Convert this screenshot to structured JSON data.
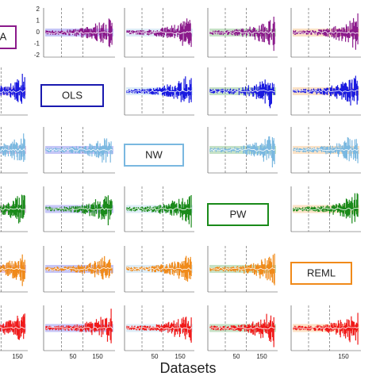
{
  "figure": {
    "diagonal_labels": [
      "A",
      "OLS",
      "NW",
      "PW",
      "REML"
    ],
    "yticks": [
      "2",
      "1",
      "0",
      "-1",
      "-2"
    ],
    "xticks": [
      [
        "150"
      ],
      [
        "50",
        "150"
      ],
      [
        "50",
        "150"
      ],
      [
        "50",
        "150"
      ],
      [
        "150"
      ]
    ],
    "xlabel": "Datasets"
  }
}
